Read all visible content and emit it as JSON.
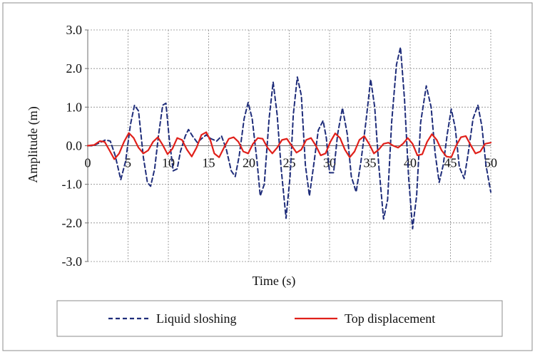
{
  "chart_data": {
    "type": "line",
    "xlabel": "Time (s)",
    "ylabel": "Amplitude (m)",
    "xlim": [
      0,
      50
    ],
    "ylim": [
      -3.0,
      3.0
    ],
    "x_ticks": [
      "0",
      "5",
      "10",
      "15",
      "20",
      "25",
      "30",
      "35",
      "40",
      "45",
      "50"
    ],
    "y_ticks": [
      "3.0",
      "2.0",
      "1.0",
      "0.0",
      "-1.0",
      "-2.0",
      "-3.0"
    ],
    "grid": true,
    "legend_position": "bottom",
    "series": [
      {
        "name": "Liquid sloshing",
        "style": "dashed",
        "color": "#1f2d7a",
        "points": [
          [
            0,
            0
          ],
          [
            0.7,
            0.0
          ],
          [
            1.5,
            0.08
          ],
          [
            2.2,
            0.15
          ],
          [
            2.8,
            0.12
          ],
          [
            3.4,
            -0.25
          ],
          [
            4.1,
            -0.88
          ],
          [
            4.7,
            -0.4
          ],
          [
            5.3,
            0.55
          ],
          [
            5.8,
            1.05
          ],
          [
            6.3,
            0.9
          ],
          [
            6.9,
            -0.3
          ],
          [
            7.4,
            -0.95
          ],
          [
            7.8,
            -1.05
          ],
          [
            8.3,
            -0.6
          ],
          [
            8.8,
            0.3
          ],
          [
            9.3,
            1.05
          ],
          [
            9.7,
            1.1
          ],
          [
            10.1,
            0.2
          ],
          [
            10.6,
            -0.65
          ],
          [
            11.1,
            -0.6
          ],
          [
            11.5,
            -0.15
          ],
          [
            12.1,
            0.25
          ],
          [
            12.5,
            0.42
          ],
          [
            13.0,
            0.25
          ],
          [
            13.6,
            0.08
          ],
          [
            14.1,
            0.18
          ],
          [
            14.7,
            0.28
          ],
          [
            15.3,
            0.18
          ],
          [
            16.0,
            0.12
          ],
          [
            16.6,
            0.25
          ],
          [
            17.2,
            -0.1
          ],
          [
            17.8,
            -0.65
          ],
          [
            18.3,
            -0.8
          ],
          [
            18.8,
            -0.25
          ],
          [
            19.4,
            0.7
          ],
          [
            19.9,
            1.12
          ],
          [
            20.4,
            0.7
          ],
          [
            21.0,
            -0.4
          ],
          [
            21.4,
            -1.3
          ],
          [
            21.9,
            -1.0
          ],
          [
            22.5,
            0.7
          ],
          [
            23.0,
            1.65
          ],
          [
            23.5,
            0.8
          ],
          [
            24.0,
            -0.6
          ],
          [
            24.6,
            -1.88
          ],
          [
            25.1,
            -0.8
          ],
          [
            25.5,
            0.8
          ],
          [
            26.0,
            1.78
          ],
          [
            26.5,
            1.3
          ],
          [
            27.0,
            -0.5
          ],
          [
            27.5,
            -1.3
          ],
          [
            28.0,
            -0.55
          ],
          [
            28.6,
            0.4
          ],
          [
            29.2,
            0.65
          ],
          [
            29.6,
            0.2
          ],
          [
            30.0,
            -0.7
          ],
          [
            30.5,
            -0.7
          ],
          [
            31.0,
            0.3
          ],
          [
            31.6,
            0.98
          ],
          [
            32.2,
            0.3
          ],
          [
            32.7,
            -0.8
          ],
          [
            33.3,
            -1.2
          ],
          [
            33.9,
            -0.4
          ],
          [
            34.5,
            0.6
          ],
          [
            35.1,
            1.72
          ],
          [
            35.6,
            1.0
          ],
          [
            36.1,
            -0.5
          ],
          [
            36.7,
            -1.9
          ],
          [
            37.2,
            -1.4
          ],
          [
            37.7,
            0.6
          ],
          [
            38.3,
            2.1
          ],
          [
            38.8,
            2.55
          ],
          [
            39.3,
            1.2
          ],
          [
            39.8,
            -0.8
          ],
          [
            40.3,
            -2.15
          ],
          [
            40.8,
            -1.3
          ],
          [
            41.3,
            0.6
          ],
          [
            42.0,
            1.55
          ],
          [
            42.6,
            1.0
          ],
          [
            43.1,
            -0.2
          ],
          [
            43.6,
            -0.95
          ],
          [
            44.1,
            -0.5
          ],
          [
            44.6,
            0.3
          ],
          [
            45.1,
            0.95
          ],
          [
            45.6,
            0.45
          ],
          [
            46.1,
            -0.55
          ],
          [
            46.7,
            -0.85
          ],
          [
            47.2,
            -0.2
          ],
          [
            47.8,
            0.7
          ],
          [
            48.4,
            1.05
          ],
          [
            48.9,
            0.5
          ],
          [
            49.4,
            -0.5
          ],
          [
            50.0,
            -1.2
          ]
        ]
      },
      {
        "name": "Top displacement",
        "style": "solid",
        "color": "#e0201a",
        "points": [
          [
            0,
            0
          ],
          [
            0.8,
            0.02
          ],
          [
            1.5,
            0.12
          ],
          [
            2.1,
            0.1
          ],
          [
            2.7,
            -0.12
          ],
          [
            3.3,
            -0.35
          ],
          [
            3.9,
            -0.2
          ],
          [
            4.5,
            0.1
          ],
          [
            5.1,
            0.33
          ],
          [
            5.7,
            0.2
          ],
          [
            6.3,
            -0.05
          ],
          [
            6.9,
            -0.2
          ],
          [
            7.5,
            -0.12
          ],
          [
            8.1,
            0.1
          ],
          [
            8.7,
            0.22
          ],
          [
            9.3,
            0.02
          ],
          [
            9.9,
            -0.22
          ],
          [
            10.5,
            -0.08
          ],
          [
            11.1,
            0.2
          ],
          [
            11.7,
            0.15
          ],
          [
            12.3,
            -0.1
          ],
          [
            12.9,
            -0.28
          ],
          [
            13.5,
            -0.05
          ],
          [
            14.1,
            0.28
          ],
          [
            14.7,
            0.35
          ],
          [
            15.2,
            0.15
          ],
          [
            15.7,
            -0.2
          ],
          [
            16.3,
            -0.3
          ],
          [
            16.9,
            -0.05
          ],
          [
            17.5,
            0.18
          ],
          [
            18.1,
            0.22
          ],
          [
            18.7,
            0.1
          ],
          [
            19.3,
            -0.15
          ],
          [
            19.9,
            -0.2
          ],
          [
            20.5,
            0.05
          ],
          [
            21.1,
            0.2
          ],
          [
            21.7,
            0.18
          ],
          [
            22.3,
            -0.05
          ],
          [
            22.9,
            -0.2
          ],
          [
            23.5,
            -0.05
          ],
          [
            24.1,
            0.15
          ],
          [
            24.7,
            0.18
          ],
          [
            25.3,
            0.0
          ],
          [
            25.9,
            -0.18
          ],
          [
            26.5,
            -0.1
          ],
          [
            27.1,
            0.15
          ],
          [
            27.7,
            0.2
          ],
          [
            28.3,
            0.0
          ],
          [
            28.9,
            -0.25
          ],
          [
            29.5,
            -0.2
          ],
          [
            30.1,
            0.1
          ],
          [
            30.7,
            0.32
          ],
          [
            31.3,
            0.2
          ],
          [
            31.9,
            -0.1
          ],
          [
            32.5,
            -0.3
          ],
          [
            33.1,
            -0.15
          ],
          [
            33.7,
            0.15
          ],
          [
            34.3,
            0.25
          ],
          [
            34.9,
            0.05
          ],
          [
            35.5,
            -0.2
          ],
          [
            36.1,
            -0.1
          ],
          [
            36.7,
            0.05
          ],
          [
            37.3,
            0.08
          ],
          [
            37.9,
            0.0
          ],
          [
            38.5,
            -0.05
          ],
          [
            39.1,
            0.05
          ],
          [
            39.7,
            0.2
          ],
          [
            40.3,
            0.05
          ],
          [
            40.9,
            -0.25
          ],
          [
            41.5,
            -0.22
          ],
          [
            42.1,
            0.1
          ],
          [
            42.7,
            0.3
          ],
          [
            43.3,
            0.15
          ],
          [
            43.9,
            -0.12
          ],
          [
            44.5,
            -0.28
          ],
          [
            45.1,
            -0.3
          ],
          [
            45.7,
            0.0
          ],
          [
            46.3,
            0.22
          ],
          [
            46.9,
            0.25
          ],
          [
            47.5,
            0.02
          ],
          [
            48.1,
            -0.2
          ],
          [
            48.7,
            -0.15
          ],
          [
            49.3,
            0.05
          ],
          [
            50.0,
            0.08
          ]
        ]
      }
    ]
  }
}
